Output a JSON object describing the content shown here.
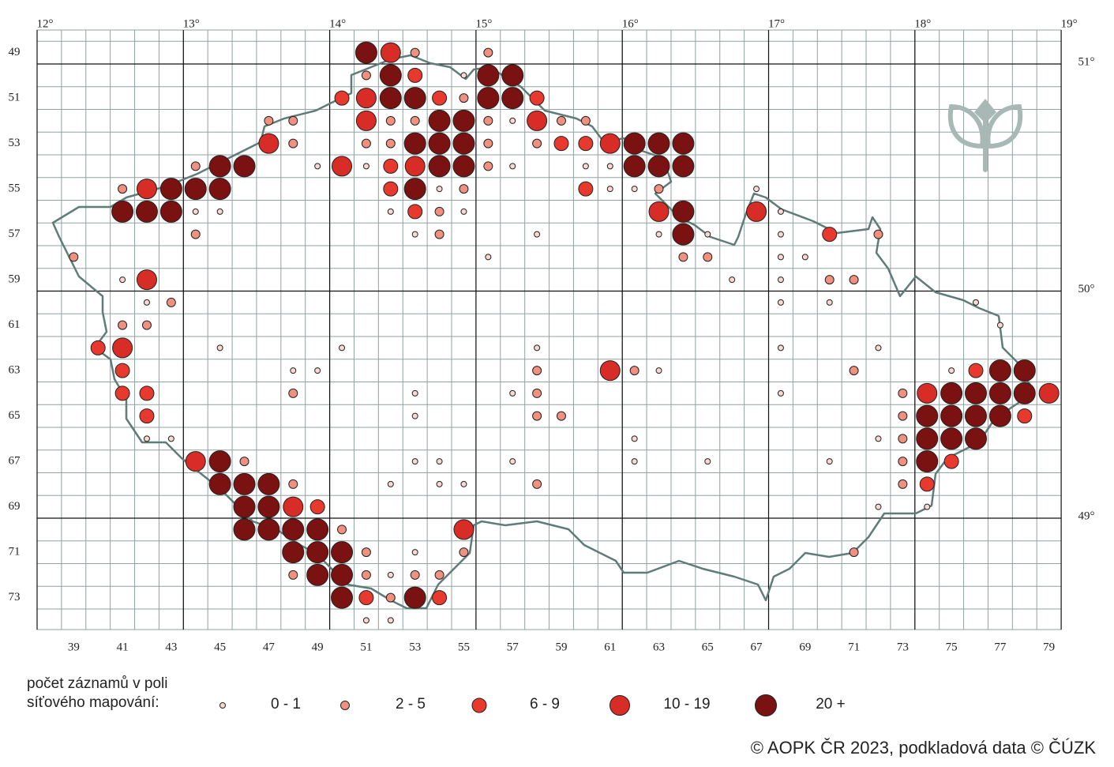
{
  "map": {
    "lon_ticks": [
      {
        "value": 12,
        "label": "12°"
      },
      {
        "value": 13,
        "label": "13°"
      },
      {
        "value": 14,
        "label": "14°"
      },
      {
        "value": 15,
        "label": "15°"
      },
      {
        "value": 16,
        "label": "16°"
      },
      {
        "value": 17,
        "label": "17°"
      },
      {
        "value": 18,
        "label": "18°"
      },
      {
        "value": 19,
        "label": "19°"
      }
    ],
    "lat_ticks": [
      {
        "value": 51,
        "label": "51°"
      },
      {
        "value": 50,
        "label": "50°"
      },
      {
        "value": 49,
        "label": "49°"
      }
    ],
    "columns": [
      39,
      41,
      43,
      45,
      47,
      49,
      51,
      53,
      55,
      57,
      59,
      61,
      63,
      65,
      67,
      69,
      71,
      73,
      75,
      77,
      79
    ],
    "rows": [
      49,
      51,
      53,
      55,
      57,
      59,
      61,
      63,
      65,
      67,
      69,
      71,
      73
    ],
    "classes": [
      {
        "label": "0 - 1",
        "color": "#f8d8d2",
        "cells": [
          [
            55,
            50
          ],
          [
            57,
            52
          ],
          [
            49,
            54
          ],
          [
            51,
            54
          ],
          [
            57,
            54
          ],
          [
            60,
            54
          ],
          [
            61,
            54
          ],
          [
            54,
            55
          ],
          [
            61,
            55
          ],
          [
            62,
            55
          ],
          [
            67,
            55
          ],
          [
            44,
            56
          ],
          [
            45,
            56
          ],
          [
            52,
            56
          ],
          [
            55,
            56
          ],
          [
            68,
            56
          ],
          [
            53,
            57
          ],
          [
            58,
            57
          ],
          [
            63,
            57
          ],
          [
            65,
            57
          ],
          [
            68,
            57
          ],
          [
            56,
            58
          ],
          [
            68,
            58
          ],
          [
            69,
            58
          ],
          [
            41,
            59
          ],
          [
            66,
            59
          ],
          [
            68,
            59
          ],
          [
            42,
            60
          ],
          [
            68,
            60
          ],
          [
            70,
            60
          ],
          [
            76,
            60
          ],
          [
            77,
            61
          ],
          [
            45,
            62
          ],
          [
            50,
            62
          ],
          [
            58,
            62
          ],
          [
            68,
            62
          ],
          [
            72,
            62
          ],
          [
            48,
            63
          ],
          [
            49,
            63
          ],
          [
            63,
            63
          ],
          [
            75,
            63
          ],
          [
            53,
            64
          ],
          [
            57,
            64
          ],
          [
            68,
            64
          ],
          [
            53,
            65
          ],
          [
            42,
            66
          ],
          [
            43,
            66
          ],
          [
            62,
            66
          ],
          [
            72,
            66
          ],
          [
            53,
            67
          ],
          [
            54,
            67
          ],
          [
            57,
            67
          ],
          [
            62,
            67
          ],
          [
            65,
            67
          ],
          [
            70,
            67
          ],
          [
            52,
            68
          ],
          [
            54,
            68
          ],
          [
            55,
            68
          ],
          [
            72,
            69
          ],
          [
            74,
            69
          ],
          [
            53,
            71
          ],
          [
            52,
            72
          ],
          [
            51,
            74
          ],
          [
            52,
            74
          ]
        ]
      },
      {
        "label": "2 - 5",
        "color": "#f0907f",
        "cells": [
          [
            53,
            49
          ],
          [
            56,
            49
          ],
          [
            51,
            50
          ],
          [
            55,
            51
          ],
          [
            47,
            52
          ],
          [
            48,
            52
          ],
          [
            52,
            52
          ],
          [
            53,
            52
          ],
          [
            56,
            52
          ],
          [
            59,
            52
          ],
          [
            60,
            52
          ],
          [
            48,
            53
          ],
          [
            51,
            53
          ],
          [
            52,
            53
          ],
          [
            56,
            53
          ],
          [
            58,
            53
          ],
          [
            44,
            54
          ],
          [
            56,
            54
          ],
          [
            41,
            55
          ],
          [
            55,
            55
          ],
          [
            63,
            55
          ],
          [
            54,
            56
          ],
          [
            44,
            57
          ],
          [
            54,
            57
          ],
          [
            72,
            57
          ],
          [
            39,
            58
          ],
          [
            64,
            58
          ],
          [
            65,
            58
          ],
          [
            70,
            59
          ],
          [
            71,
            59
          ],
          [
            43,
            60
          ],
          [
            41,
            61
          ],
          [
            42,
            61
          ],
          [
            58,
            63
          ],
          [
            62,
            63
          ],
          [
            71,
            63
          ],
          [
            48,
            64
          ],
          [
            58,
            64
          ],
          [
            73,
            64
          ],
          [
            58,
            65
          ],
          [
            59,
            65
          ],
          [
            73,
            65
          ],
          [
            73,
            66
          ],
          [
            46,
            67
          ],
          [
            73,
            67
          ],
          [
            48,
            68
          ],
          [
            58,
            68
          ],
          [
            73,
            68
          ],
          [
            50,
            70
          ],
          [
            51,
            71
          ],
          [
            55,
            71
          ],
          [
            71,
            71
          ],
          [
            48,
            72
          ],
          [
            51,
            72
          ],
          [
            53,
            72
          ],
          [
            54,
            72
          ],
          [
            52,
            73
          ]
        ]
      },
      {
        "label": "6 - 9",
        "color": "#e8392f",
        "cells": [
          [
            53,
            50
          ],
          [
            50,
            51
          ],
          [
            54,
            51
          ],
          [
            58,
            51
          ],
          [
            59,
            53
          ],
          [
            60,
            53
          ],
          [
            52,
            54
          ],
          [
            52,
            55
          ],
          [
            60,
            55
          ],
          [
            53,
            56
          ],
          [
            70,
            57
          ],
          [
            40,
            62
          ],
          [
            41,
            63
          ],
          [
            76,
            63
          ],
          [
            41,
            64
          ],
          [
            42,
            64
          ],
          [
            42,
            65
          ],
          [
            78,
            65
          ],
          [
            75,
            67
          ],
          [
            74,
            68
          ],
          [
            49,
            69
          ],
          [
            51,
            73
          ],
          [
            54,
            73
          ]
        ]
      },
      {
        "label": "10 - 19",
        "color": "#d82c26",
        "cells": [
          [
            52,
            49
          ],
          [
            51,
            51
          ],
          [
            51,
            52
          ],
          [
            58,
            52
          ],
          [
            47,
            53
          ],
          [
            61,
            53
          ],
          [
            50,
            54
          ],
          [
            53,
            54
          ],
          [
            42,
            55
          ],
          [
            63,
            56
          ],
          [
            67,
            56
          ],
          [
            42,
            59
          ],
          [
            41,
            62
          ],
          [
            61,
            63
          ],
          [
            74,
            64
          ],
          [
            79,
            64
          ],
          [
            44,
            67
          ],
          [
            48,
            69
          ],
          [
            55,
            70
          ]
        ]
      },
      {
        "label": "20 +",
        "color": "#7a1212",
        "cells": [
          [
            51,
            49
          ],
          [
            52,
            50
          ],
          [
            56,
            50
          ],
          [
            57,
            50
          ],
          [
            52,
            51
          ],
          [
            53,
            51
          ],
          [
            56,
            51
          ],
          [
            57,
            51
          ],
          [
            54,
            52
          ],
          [
            55,
            52
          ],
          [
            53,
            53
          ],
          [
            54,
            53
          ],
          [
            55,
            53
          ],
          [
            62,
            53
          ],
          [
            63,
            53
          ],
          [
            64,
            53
          ],
          [
            45,
            54
          ],
          [
            46,
            54
          ],
          [
            54,
            54
          ],
          [
            55,
            54
          ],
          [
            62,
            54
          ],
          [
            63,
            54
          ],
          [
            64,
            54
          ],
          [
            43,
            55
          ],
          [
            44,
            55
          ],
          [
            45,
            55
          ],
          [
            53,
            55
          ],
          [
            41,
            56
          ],
          [
            42,
            56
          ],
          [
            43,
            56
          ],
          [
            64,
            56
          ],
          [
            64,
            57
          ],
          [
            77,
            63
          ],
          [
            78,
            63
          ],
          [
            75,
            64
          ],
          [
            76,
            64
          ],
          [
            77,
            64
          ],
          [
            78,
            64
          ],
          [
            74,
            65
          ],
          [
            75,
            65
          ],
          [
            76,
            65
          ],
          [
            77,
            65
          ],
          [
            74,
            66
          ],
          [
            75,
            66
          ],
          [
            76,
            66
          ],
          [
            45,
            67
          ],
          [
            74,
            67
          ],
          [
            45,
            68
          ],
          [
            46,
            68
          ],
          [
            47,
            68
          ],
          [
            46,
            69
          ],
          [
            47,
            69
          ],
          [
            46,
            70
          ],
          [
            47,
            70
          ],
          [
            48,
            70
          ],
          [
            49,
            70
          ],
          [
            48,
            71
          ],
          [
            49,
            71
          ],
          [
            50,
            71
          ],
          [
            49,
            72
          ],
          [
            50,
            72
          ],
          [
            50,
            73
          ],
          [
            53,
            73
          ]
        ]
      }
    ]
  },
  "legend": {
    "title": [
      "počet záznamů v poli",
      "síťového mapování:"
    ]
  },
  "credit": "© AOPK ČR 2023, podkladová data © ČÚZK"
}
